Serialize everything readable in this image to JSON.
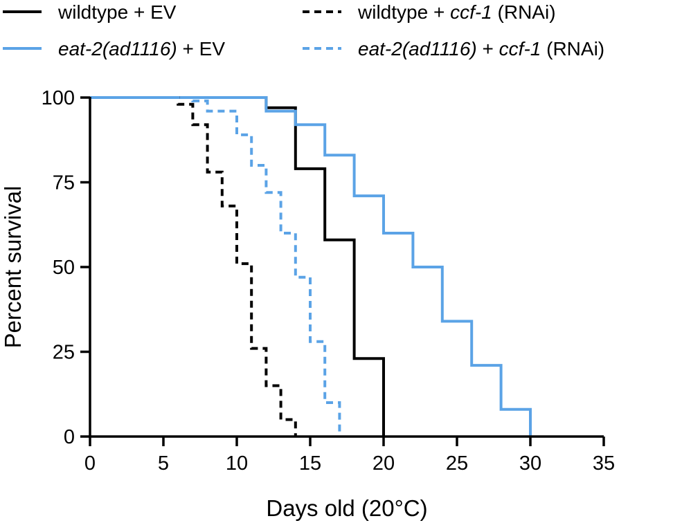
{
  "chart_data": {
    "type": "line",
    "subtype": "kaplan-meier-step",
    "title": "",
    "xlabel": "Days old (20°C)",
    "ylabel": "Percent survival",
    "xlim": [
      0,
      35
    ],
    "ylim": [
      0,
      100
    ],
    "x_ticks": [
      0,
      5,
      10,
      15,
      20,
      25,
      30,
      35
    ],
    "y_ticks": [
      0,
      25,
      50,
      75,
      100
    ],
    "grid": false,
    "legend_placement": "top",
    "series": [
      {
        "name": "wildtype + EV",
        "name_parts": [
          {
            "text": "wildtype + EV",
            "italic": false
          }
        ],
        "color": "#000000",
        "dashed": false,
        "x": [
          0,
          12,
          14,
          16,
          18,
          20
        ],
        "y": [
          100,
          97,
          79,
          58,
          23,
          0
        ]
      },
      {
        "name": "eat-2(ad1116) + EV",
        "name_parts": [
          {
            "text": "eat-2(ad1116)",
            "italic": true
          },
          {
            "text": " + EV",
            "italic": false
          }
        ],
        "color": "#5BA3E6",
        "dashed": false,
        "x": [
          0,
          12,
          14,
          16,
          18,
          20,
          22,
          24,
          26,
          28,
          30
        ],
        "y": [
          100,
          96,
          92,
          83,
          71,
          60,
          50,
          34,
          21,
          8,
          0
        ]
      },
      {
        "name": "wildtype + ccf-1 (RNAi)",
        "name_parts": [
          {
            "text": "wildtype + ",
            "italic": false
          },
          {
            "text": "ccf-1",
            "italic": true
          },
          {
            "text": " (RNAi)",
            "italic": false
          }
        ],
        "color": "#000000",
        "dashed": true,
        "x": [
          0,
          6,
          7,
          8,
          9,
          10,
          11,
          12,
          13,
          14
        ],
        "y": [
          100,
          98,
          92,
          78,
          68,
          51,
          26,
          15,
          5,
          0
        ]
      },
      {
        "name": "eat-2(ad1116) + ccf-1 (RNAi)",
        "name_parts": [
          {
            "text": "eat-2(ad1116)",
            "italic": true
          },
          {
            "text": " + ",
            "italic": false
          },
          {
            "text": "ccf-1",
            "italic": true
          },
          {
            "text": " (RNAi)",
            "italic": false
          }
        ],
        "color": "#5BA3E6",
        "dashed": true,
        "x": [
          0,
          7,
          8,
          10,
          11,
          12,
          13,
          14,
          15,
          16,
          17
        ],
        "y": [
          100,
          99,
          96,
          89,
          80,
          72,
          60,
          47,
          28,
          10,
          0
        ]
      }
    ]
  }
}
